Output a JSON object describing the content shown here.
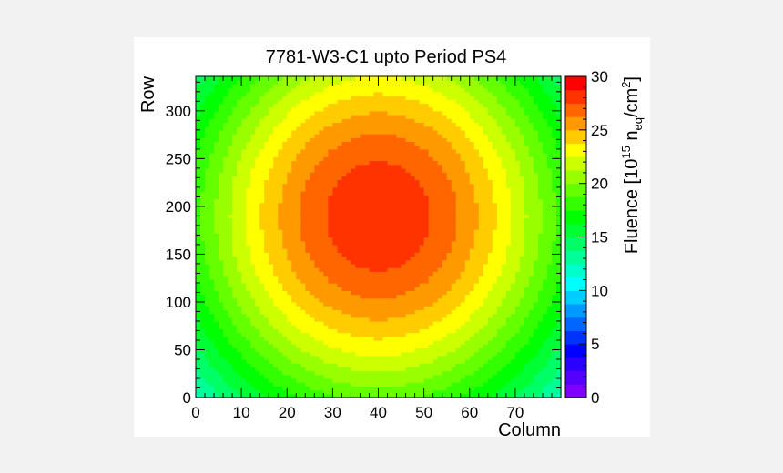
{
  "chart_data": {
    "type": "heatmap",
    "title": "7781-W3-C1 upto Period PS4",
    "xlabel": "Column",
    "ylabel": "Row",
    "zlabel_parts": [
      "Fluence [10",
      "15",
      " n",
      "eq",
      "/cm",
      "2",
      "]"
    ],
    "xlim": [
      0,
      80
    ],
    "ylim": [
      0,
      336
    ],
    "zlim": [
      0,
      30
    ],
    "x_ticks": [
      0,
      10,
      20,
      30,
      40,
      50,
      60,
      70
    ],
    "y_ticks": [
      0,
      50,
      100,
      150,
      200,
      250,
      300
    ],
    "z_ticks": [
      0,
      5,
      10,
      15,
      20,
      25,
      30
    ],
    "peak": {
      "x": 40,
      "y": 190,
      "value": 28.5
    },
    "radii": {
      "x": 60,
      "y": 300
    },
    "palette": [
      "#7f00ff",
      "#5500ff",
      "#2a00ff",
      "#0000ff",
      "#0033ff",
      "#0066ff",
      "#0099ff",
      "#00ccff",
      "#00ffff",
      "#00ffcc",
      "#00ff99",
      "#00ff66",
      "#00ff33",
      "#00ff00",
      "#33ff00",
      "#66ff00",
      "#99ff00",
      "#ccff00",
      "#ffff00",
      "#ffcc00",
      "#ff9900",
      "#ff6600",
      "#ff3300",
      "#ff0000"
    ]
  }
}
